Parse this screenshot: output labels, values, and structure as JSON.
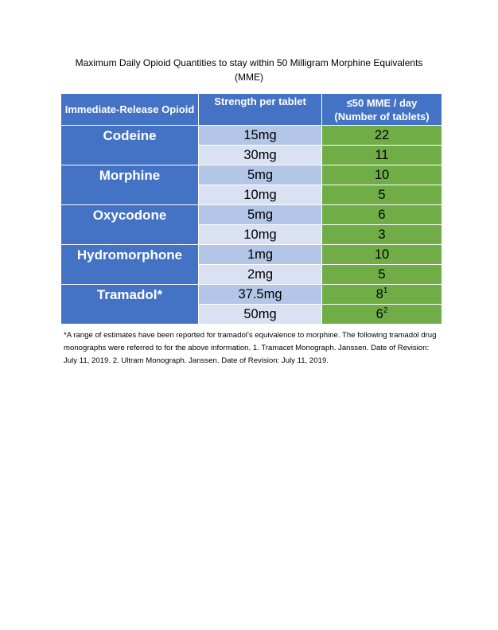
{
  "title": "Maximum Daily Opioid Quantities to stay within 50 Milligram Morphine Equivalents (MME)",
  "headers": {
    "col1": "Immediate-Release Opioid",
    "col2": "Strength per tablet",
    "col3_line1": "≤50 MME / day",
    "col3_line2": "(Number of tablets)"
  },
  "rows": [
    {
      "drug": "Codeine",
      "strength1": "15mg",
      "tablets1": "22",
      "sup1": "",
      "strength2": "30mg",
      "tablets2": "11",
      "sup2": ""
    },
    {
      "drug": "Morphine",
      "strength1": "5mg",
      "tablets1": "10",
      "sup1": "",
      "strength2": "10mg",
      "tablets2": "5",
      "sup2": ""
    },
    {
      "drug": "Oxycodone",
      "strength1": "5mg",
      "tablets1": "6",
      "sup1": "",
      "strength2": "10mg",
      "tablets2": "3",
      "sup2": ""
    },
    {
      "drug": "Hydromorphone",
      "strength1": "1mg",
      "tablets1": "10",
      "sup1": "",
      "strength2": "2mg",
      "tablets2": "5",
      "sup2": ""
    },
    {
      "drug": "Tramadol*",
      "strength1": "37.5mg",
      "tablets1": "8",
      "sup1": "1",
      "strength2": "50mg",
      "tablets2": "6",
      "sup2": "2"
    }
  ],
  "footnote": "*A range of estimates have been reported for tramadol’s equivalence to morphine. The following tramadol drug monographs were referred to for the above information. 1. Tramacet Monograph. Janssen. Date of Revision: July 11, 2019. 2. Ultram Monograph. Janssen. Date of Revision: July 11, 2019.",
  "colors": {
    "header_blue": "#4472c4",
    "strength_light_blue": "#b4c6e7",
    "strength_pale_blue": "#d9e1f2",
    "tablets_green": "#70ad47"
  }
}
